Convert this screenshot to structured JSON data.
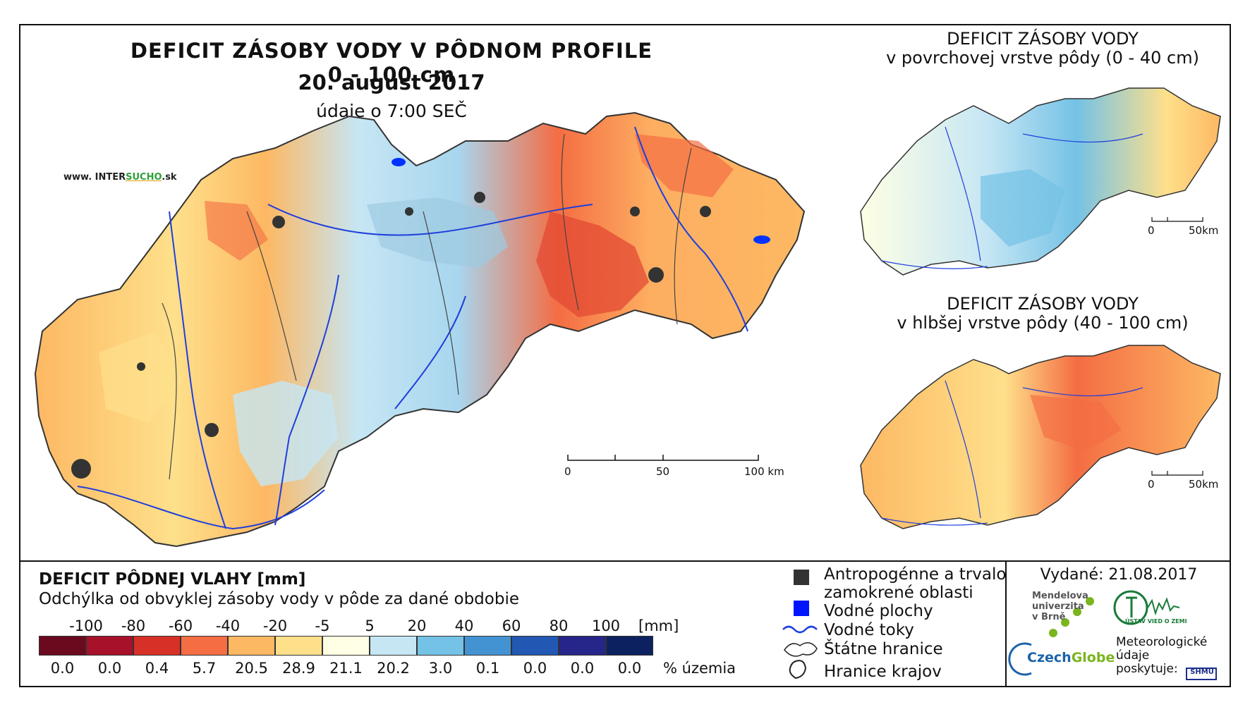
{
  "main": {
    "title": "DEFICIT ZÁSOBY VODY V PÔDNOM PROFILE 0 - 100 cm",
    "date": "20. august 2017",
    "time": "údaje o 7:00 SEČ",
    "website_prefix": "www. INTER",
    "website_accent": "SUCHO",
    "website_suffix": ".sk",
    "scale": {
      "labels": [
        "0",
        "50",
        "100 km"
      ]
    }
  },
  "inset_top": {
    "title_line1": "DEFICIT ZÁSOBY VODY",
    "title_line2": "v povrchovej vrstve pôdy (0 - 40 cm)",
    "scale": {
      "labels": [
        "0",
        "50km"
      ]
    }
  },
  "inset_bottom": {
    "title_line1": "DEFICIT ZÁSOBY VODY",
    "title_line2": "v hlbšej vrstve pôdy (40 - 100 cm)",
    "scale": {
      "labels": [
        "0",
        "50km"
      ]
    }
  },
  "legend": {
    "title": "DEFICIT PÔDNEJ VLAHY [mm]",
    "subtitle": "Odchýlka od obvyklej zásoby vody v pôde za dané obdobie",
    "unit_top": "[mm]",
    "unit_bottom": "% územia",
    "boundary_labels": [
      "-100",
      "-80",
      "-60",
      "-40",
      "-20",
      "-5",
      "5",
      "20",
      "40",
      "60",
      "80",
      "100"
    ],
    "classes": [
      {
        "color": "#6b0a1e",
        "percent": "0.0"
      },
      {
        "color": "#a8112a",
        "percent": "0.0"
      },
      {
        "color": "#d73027",
        "percent": "0.4"
      },
      {
        "color": "#f46d43",
        "percent": "5.7"
      },
      {
        "color": "#fdb863",
        "percent": "20.5"
      },
      {
        "color": "#fee08b",
        "percent": "28.9"
      },
      {
        "color": "#ffffe5",
        "percent": "21.1"
      },
      {
        "color": "#c6e6f4",
        "percent": "20.2"
      },
      {
        "color": "#74c2e6",
        "percent": "3.0"
      },
      {
        "color": "#4393d3",
        "percent": "0.1"
      },
      {
        "color": "#2258b4",
        "percent": "0.0"
      },
      {
        "color": "#26258a",
        "percent": "0.0"
      },
      {
        "color": "#0c2260",
        "percent": "0.0"
      }
    ]
  },
  "key": {
    "anthropogenic_line1": "Antropogénne a trvalo",
    "anthropogenic_line2": "zamokrené oblasti",
    "water_bodies": "Vodné plochy",
    "water_streams": "Vodné toky",
    "state_borders": "Štátne hranice",
    "region_borders": "Hranice krajov"
  },
  "issued": "Vydané: 21.08.2017",
  "orgs": {
    "mendel_line1": "Mendelova",
    "mendel_line2": "univerzita",
    "mendel_line3": "v Brně",
    "czechglobe_a": "Czech",
    "czechglobe_b": "Globe",
    "uvgz": "ÚSTAV VIED O ZEMI",
    "meteo_line1": "Meteorologické",
    "meteo_line2": "údaje",
    "meteo_line3": "poskytuje:",
    "shmu": "SHMÚ"
  }
}
